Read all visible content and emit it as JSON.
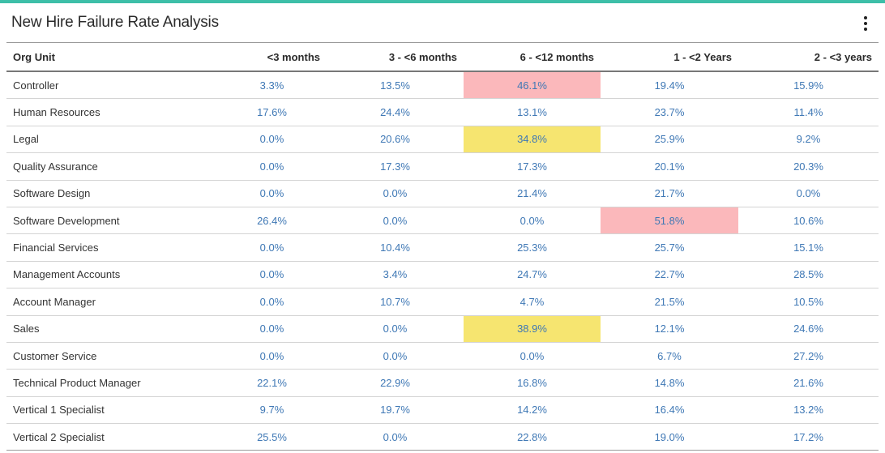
{
  "title": "New Hire Failure Rate Analysis",
  "menu_icon": "more-vertical-icon",
  "colors": {
    "accent": "#3dbfa8",
    "value_text": "#3f78b5",
    "highlight_red": "#fbb8bb",
    "highlight_yellow": "#f6e570"
  },
  "columns": [
    "Org Unit",
    "<3 months",
    "3 - <6 months",
    "6 - <12 months",
    "1 - <2 Years",
    "2 - <3 years"
  ],
  "rows": [
    {
      "org": "Controller",
      "values": [
        "3.3%",
        "13.5%",
        "46.1%",
        "19.4%",
        "15.9%"
      ],
      "highlights": [
        "",
        "",
        "red",
        "",
        ""
      ]
    },
    {
      "org": "Human Resources",
      "values": [
        "17.6%",
        "24.4%",
        "13.1%",
        "23.7%",
        "11.4%"
      ],
      "highlights": [
        "",
        "",
        "",
        "",
        ""
      ]
    },
    {
      "org": "Legal",
      "values": [
        "0.0%",
        "20.6%",
        "34.8%",
        "25.9%",
        "9.2%"
      ],
      "highlights": [
        "",
        "",
        "yellow",
        "",
        ""
      ]
    },
    {
      "org": "Quality Assurance",
      "values": [
        "0.0%",
        "17.3%",
        "17.3%",
        "20.1%",
        "20.3%"
      ],
      "highlights": [
        "",
        "",
        "",
        "",
        ""
      ]
    },
    {
      "org": "Software Design",
      "values": [
        "0.0%",
        "0.0%",
        "21.4%",
        "21.7%",
        "0.0%"
      ],
      "highlights": [
        "",
        "",
        "",
        "",
        ""
      ]
    },
    {
      "org": "Software Development",
      "values": [
        "26.4%",
        "0.0%",
        "0.0%",
        "51.8%",
        "10.6%"
      ],
      "highlights": [
        "",
        "",
        "",
        "red",
        ""
      ]
    },
    {
      "org": "Financial Services",
      "values": [
        "0.0%",
        "10.4%",
        "25.3%",
        "25.7%",
        "15.1%"
      ],
      "highlights": [
        "",
        "",
        "",
        "",
        ""
      ]
    },
    {
      "org": "Management Accounts",
      "values": [
        "0.0%",
        "3.4%",
        "24.7%",
        "22.7%",
        "28.5%"
      ],
      "highlights": [
        "",
        "",
        "",
        "",
        ""
      ]
    },
    {
      "org": "Account Manager",
      "values": [
        "0.0%",
        "10.7%",
        "4.7%",
        "21.5%",
        "10.5%"
      ],
      "highlights": [
        "",
        "",
        "",
        "",
        ""
      ]
    },
    {
      "org": "Sales",
      "values": [
        "0.0%",
        "0.0%",
        "38.9%",
        "12.1%",
        "24.6%"
      ],
      "highlights": [
        "",
        "",
        "yellow",
        "",
        ""
      ]
    },
    {
      "org": "Customer Service",
      "values": [
        "0.0%",
        "0.0%",
        "0.0%",
        "6.7%",
        "27.2%"
      ],
      "highlights": [
        "",
        "",
        "",
        "",
        ""
      ]
    },
    {
      "org": "Technical Product Manager",
      "values": [
        "22.1%",
        "22.9%",
        "16.8%",
        "14.8%",
        "21.6%"
      ],
      "highlights": [
        "",
        "",
        "",
        "",
        ""
      ]
    },
    {
      "org": "Vertical 1 Specialist",
      "values": [
        "9.7%",
        "19.7%",
        "14.2%",
        "16.4%",
        "13.2%"
      ],
      "highlights": [
        "",
        "",
        "",
        "",
        ""
      ]
    },
    {
      "org": "Vertical 2 Specialist",
      "values": [
        "25.5%",
        "0.0%",
        "22.8%",
        "19.0%",
        "17.2%"
      ],
      "highlights": [
        "",
        "",
        "",
        "",
        ""
      ]
    }
  ]
}
